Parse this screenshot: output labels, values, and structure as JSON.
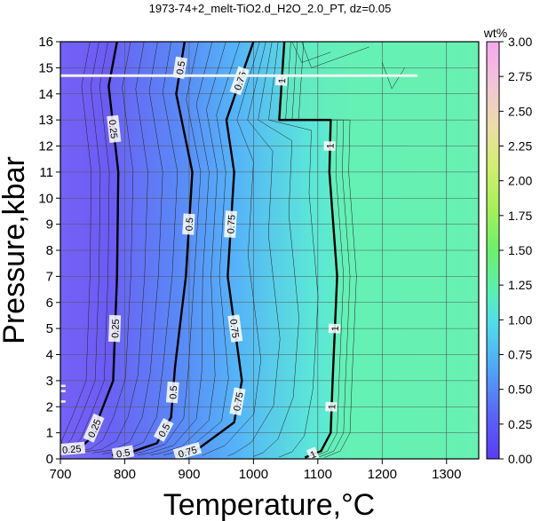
{
  "chart_data": {
    "type": "heatmap",
    "title": "1973-74+2_melt-TiO2.d_H2O_2.0_PT, dz=0.05",
    "xlabel": "Temperature,°C",
    "ylabel": "Pressure,kbar",
    "xlim": [
      700,
      1350
    ],
    "ylim": [
      0,
      16
    ],
    "x_ticks": [
      "700",
      "800",
      "900",
      "1000",
      "1100",
      "1200",
      "1300"
    ],
    "y_ticks": [
      "0",
      "1",
      "2",
      "3",
      "4",
      "5",
      "6",
      "7",
      "8",
      "9",
      "10",
      "11",
      "12",
      "13",
      "14",
      "15",
      "16"
    ],
    "grid": true,
    "colorbar": {
      "label": "wt%",
      "range": [
        0,
        3
      ],
      "ticks": [
        "0.00",
        "0.25",
        "0.50",
        "0.75",
        "1.00",
        "1.25",
        "1.50",
        "1.75",
        "2.00",
        "2.25",
        "2.50",
        "2.75",
        "3.00"
      ],
      "colors": [
        "#5a3cf4",
        "#5d74f7",
        "#50b6f8",
        "#50f0c8",
        "#5ef28a",
        "#a6f05a",
        "#ececa4",
        "#f3bfe0",
        "#f5a8ef"
      ]
    },
    "contours": [
      {
        "level": "0.25",
        "labels": [
          "0.25",
          "0.25",
          "0.25",
          "0.25"
        ],
        "points": [
          [
            788,
            16
          ],
          [
            775,
            14.3
          ],
          [
            790,
            11
          ],
          [
            788,
            7
          ],
          [
            782,
            3
          ],
          [
            760,
            1.6
          ],
          [
            745,
            0.75
          ],
          [
            730,
            0.4
          ],
          [
            705,
            0.35
          ]
        ]
      },
      {
        "level": "0.5",
        "labels": [
          "0.5",
          "0.5",
          "0.5",
          "0.5",
          "0.5"
        ],
        "points": [
          [
            893,
            16
          ],
          [
            880,
            14
          ],
          [
            905,
            11
          ],
          [
            895,
            7
          ],
          [
            878,
            3.5
          ],
          [
            872,
            1.6
          ],
          [
            850,
            0.6
          ],
          [
            815,
            0.3
          ],
          [
            780,
            0.15
          ]
        ]
      },
      {
        "level": "0.75",
        "labels": [
          "0.75",
          "0.75",
          "0.75",
          "0.75",
          "0.75"
        ],
        "points": [
          [
            1000,
            16
          ],
          [
            958,
            13
          ],
          [
            970,
            11
          ],
          [
            960,
            7
          ],
          [
            982,
            3
          ],
          [
            970,
            1.4
          ],
          [
            915,
            0.4
          ],
          [
            880,
            0.15
          ]
        ]
      },
      {
        "level": "1",
        "labels": [
          "1",
          "1",
          "1",
          "1",
          "1"
        ],
        "points": [
          [
            1048,
            16
          ],
          [
            1040,
            13
          ],
          [
            1120,
            13
          ],
          [
            1118,
            11
          ],
          [
            1130,
            7
          ],
          [
            1123,
            3
          ],
          [
            1120,
            1
          ],
          [
            1105,
            0.3
          ],
          [
            1080,
            0.05
          ]
        ]
      }
    ],
    "color_field": {
      "description_levels": [
        0.0,
        0.25,
        0.5,
        0.75,
        1.0,
        1.1
      ],
      "zones": [
        "<0.25",
        "0.25-0.5",
        "0.5-0.75",
        "0.75-1.0",
        ">1.0"
      ]
    },
    "highlights": [
      {
        "type": "hline",
        "y": 14.7,
        "x_from": 700,
        "x_to": 1255
      },
      {
        "type": "hsegment",
        "y": 2.8,
        "x_from": 700,
        "x_to": 708
      },
      {
        "type": "hsegment",
        "y": 2.6,
        "x_from": 700,
        "x_to": 708
      },
      {
        "type": "hsegment",
        "y": 2.2,
        "x_from": 700,
        "x_to": 708
      }
    ]
  }
}
